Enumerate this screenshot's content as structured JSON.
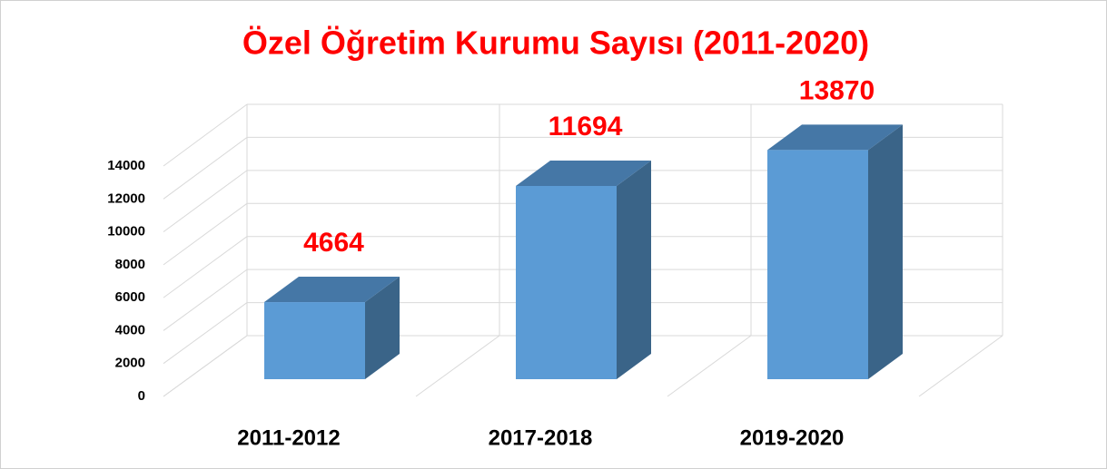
{
  "chart_data": {
    "type": "bar3d",
    "title": "Özel Öğretim Kurumu Sayısı (2011-2020)",
    "categories": [
      "2011-2012",
      "2017-2018",
      "2019-2020"
    ],
    "values": [
      4664,
      11694,
      13870
    ],
    "color": "#5b9bd5",
    "label_color": "#ff0000",
    "ylim": [
      0,
      14000
    ],
    "yticks": [
      0,
      2000,
      4000,
      6000,
      8000,
      10000,
      12000,
      14000
    ],
    "grid": true
  }
}
